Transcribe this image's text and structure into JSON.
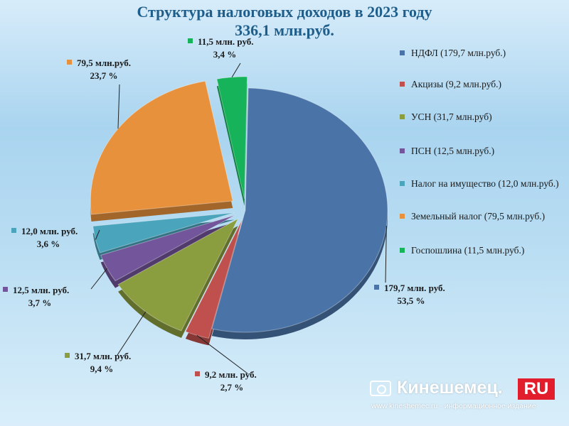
{
  "chart_data": {
    "type": "pie",
    "title": "Структура налоговых доходов в 2023 году",
    "subtitle": "336,1 млн.руб.",
    "slices": [
      {
        "legend": "НДФЛ (179,7 млн.руб.)",
        "value": 179.7,
        "percent": 53.5,
        "color": "#4a74a8",
        "label_value": "179,7 млн. руб.",
        "label_percent": "53,5 %"
      },
      {
        "legend": "Акцизы (9,2 млн.руб.)",
        "value": 9.2,
        "percent": 2.7,
        "color": "#c0504d",
        "label_value": "9,2 млн. руб.",
        "label_percent": "2,7 %"
      },
      {
        "legend": "УСН (31,7 млн.руб)",
        "value": 31.7,
        "percent": 9.4,
        "color": "#8a9d3f",
        "label_value": "31,7 млн. руб.",
        "label_percent": "9,4 %"
      },
      {
        "legend": "ПСН (12,5 млн.руб.)",
        "value": 12.5,
        "percent": 3.7,
        "color": "#72559a",
        "label_value": "12,5 млн. руб.",
        "label_percent": "3,7 %"
      },
      {
        "legend": "Налог на имущество (12,0 млн.руб.)",
        "value": 12.0,
        "percent": 3.6,
        "color": "#4aa4bc",
        "label_value": "12,0 млн. руб.",
        "label_percent": "3,6 %"
      },
      {
        "legend": "Земельный налог (79,5 млн.руб.)",
        "value": 79.5,
        "percent": 23.7,
        "color": "#e8913c",
        "label_value": "79,5 млн.руб.",
        "label_percent": "23,7 %"
      },
      {
        "legend": "Госпошлина (11,5 млн.руб.)",
        "value": 11.5,
        "percent": 3.4,
        "color": "#16b35a",
        "label_value": "11,5 млн. руб.",
        "label_percent": "3,4 %"
      }
    ],
    "legend_position": "right"
  },
  "watermark": {
    "name": "Кинешемец.",
    "ru": "RU",
    "caption": "www.kineshemec.ru - информационное издание"
  }
}
